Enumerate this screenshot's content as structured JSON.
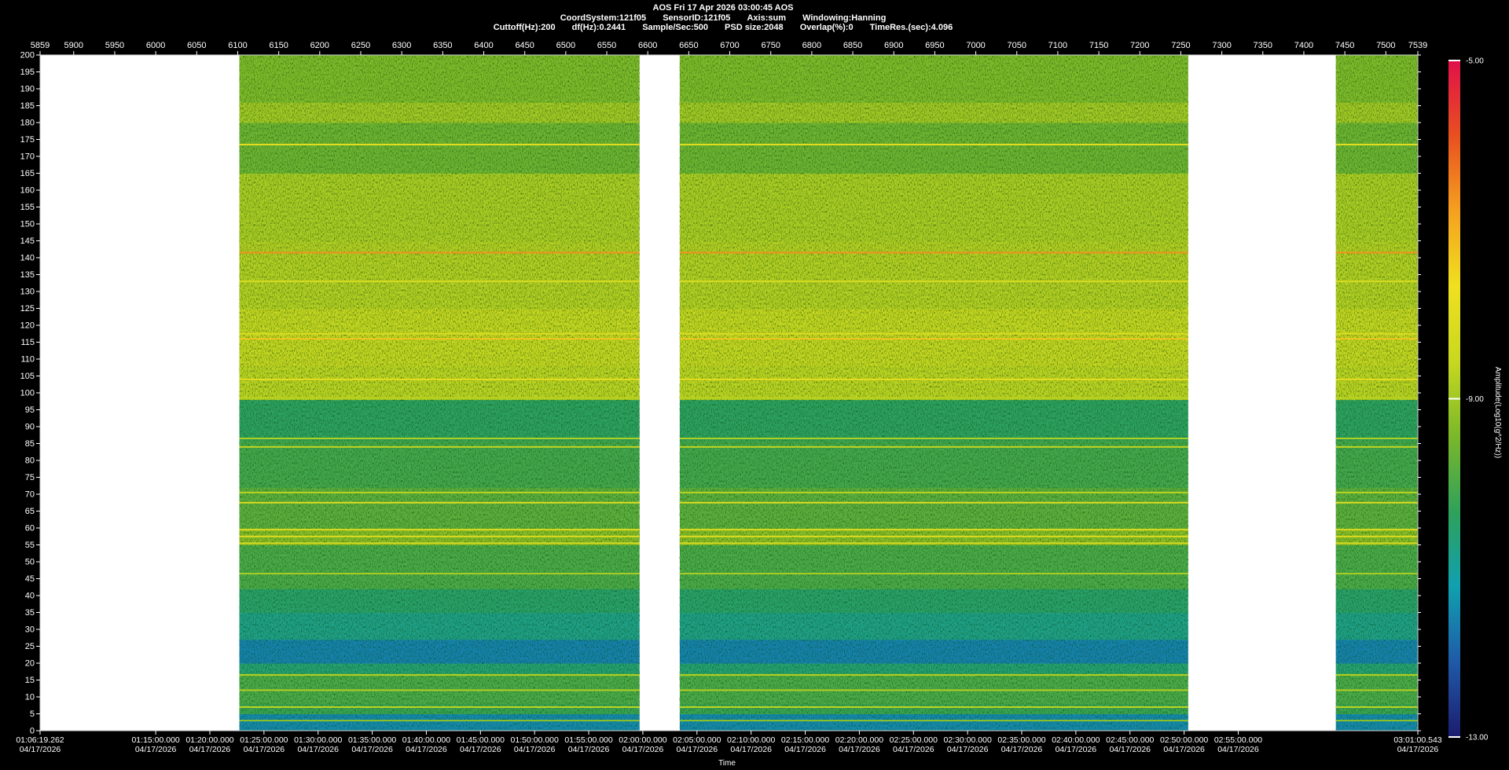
{
  "header": {
    "line1": "AOS  Fri 17 Apr 2026 03:00:45  AOS",
    "line2": [
      "CoordSystem:121f05",
      "SensorID:121f05",
      "Axis:sum",
      "Windowing:Hanning"
    ],
    "line3": [
      "Cuttoff(Hz):200",
      "df(Hz):0.2441",
      "Sample/Sec:500",
      "PSD size:2048",
      "Overlap(%):0",
      "TimeRes.(sec):4.096"
    ]
  },
  "chart_data": {
    "type": "heatmap",
    "title": "AOS  Fri 17 Apr 2026 03:00:45  AOS",
    "xlabel": "Time",
    "ylabel": "",
    "zlabel": "Amplitude(Log10(g^2/Hz))",
    "colormap": [
      "#1c1c6e",
      "#1f5aa8",
      "#10a0b0",
      "#2fa15a",
      "#7ab82a",
      "#c8d820",
      "#f0e020",
      "#f5a020",
      "#e85020",
      "#e0104a"
    ],
    "zlim": [
      -13.0,
      -5.0
    ],
    "colorbar_ticks": [
      "-5.00",
      "-9.00",
      "-13.00"
    ],
    "ylim": [
      0,
      200
    ],
    "y_ticks": [
      0,
      5,
      10,
      15,
      20,
      25,
      30,
      35,
      40,
      45,
      50,
      55,
      60,
      65,
      70,
      75,
      80,
      85,
      90,
      95,
      100,
      105,
      110,
      115,
      120,
      125,
      130,
      135,
      140,
      145,
      150,
      155,
      160,
      165,
      170,
      175,
      180,
      185,
      190,
      195,
      200
    ],
    "top_axis": {
      "range": [
        5859,
        7539
      ],
      "ticks": [
        5859,
        5900,
        5950,
        6000,
        6050,
        6100,
        6150,
        6200,
        6250,
        6300,
        6350,
        6400,
        6450,
        6500,
        6550,
        6600,
        6650,
        6700,
        6750,
        6800,
        6850,
        6900,
        6950,
        7000,
        7050,
        7100,
        7150,
        7200,
        7250,
        7300,
        7350,
        7400,
        7450,
        7500,
        7539
      ]
    },
    "bottom_axis": {
      "ticks": [
        {
          "pos": 5859,
          "time": "01:06:19.262",
          "date": "04/17/2026"
        },
        {
          "pos": 6000,
          "time": "01:15:00.000",
          "date": "04/17/2026"
        },
        {
          "pos": 6066,
          "time": "01:20:00.000",
          "date": "04/17/2026"
        },
        {
          "pos": 6132,
          "time": "01:25:00.000",
          "date": "04/17/2026"
        },
        {
          "pos": 6198,
          "time": "01:30:00.000",
          "date": "04/17/2026"
        },
        {
          "pos": 6264,
          "time": "01:35:00.000",
          "date": "04/17/2026"
        },
        {
          "pos": 6330,
          "time": "01:40:00.000",
          "date": "04/17/2026"
        },
        {
          "pos": 6396,
          "time": "01:45:00.000",
          "date": "04/17/2026"
        },
        {
          "pos": 6462,
          "time": "01:50:00.000",
          "date": "04/17/2026"
        },
        {
          "pos": 6528,
          "time": "01:55:00.000",
          "date": "04/17/2026"
        },
        {
          "pos": 6594,
          "time": "02:00:00.000",
          "date": "04/17/2026"
        },
        {
          "pos": 6660,
          "time": "02:05:00.000",
          "date": "04/17/2026"
        },
        {
          "pos": 6726,
          "time": "02:10:00.000",
          "date": "04/17/2026"
        },
        {
          "pos": 6792,
          "time": "02:15:00.000",
          "date": "04/17/2026"
        },
        {
          "pos": 6858,
          "time": "02:20:00.000",
          "date": "04/17/2026"
        },
        {
          "pos": 6924,
          "time": "02:25:00.000",
          "date": "04/17/2026"
        },
        {
          "pos": 6990,
          "time": "02:30:00.000",
          "date": "04/17/2026"
        },
        {
          "pos": 7056,
          "time": "02:35:00.000",
          "date": "04/17/2026"
        },
        {
          "pos": 7122,
          "time": "02:40:00.000",
          "date": "04/17/2026"
        },
        {
          "pos": 7188,
          "time": "02:45:00.000",
          "date": "04/17/2026"
        },
        {
          "pos": 7254,
          "time": "02:50:00.000",
          "date": "04/17/2026"
        },
        {
          "pos": 7320,
          "time": "02:55:00.000",
          "date": "04/17/2026"
        },
        {
          "pos": 7539,
          "time": "03:01:00.543",
          "date": "04/17/2026"
        }
      ]
    },
    "data_segments": [
      {
        "start": 6102,
        "end": 6590
      },
      {
        "start": 6639,
        "end": 7259
      },
      {
        "start": 7439,
        "end": 7539
      }
    ],
    "spectral_bands": [
      {
        "f0": 0,
        "f1": 5,
        "level": -11.5
      },
      {
        "f0": 5,
        "f1": 8,
        "level": -10.2
      },
      {
        "f0": 8,
        "f1": 17,
        "level": -10.0
      },
      {
        "f0": 17,
        "f1": 20,
        "level": -10.6
      },
      {
        "f0": 20,
        "f1": 27,
        "level": -11.6
      },
      {
        "f0": 27,
        "f1": 35,
        "level": -10.8
      },
      {
        "f0": 35,
        "f1": 42,
        "level": -10.5
      },
      {
        "f0": 42,
        "f1": 55,
        "level": -10.0
      },
      {
        "f0": 55,
        "f1": 60,
        "level": -9.3
      },
      {
        "f0": 60,
        "f1": 72,
        "level": -9.8
      },
      {
        "f0": 72,
        "f1": 86,
        "level": -10.1
      },
      {
        "f0": 86,
        "f1": 98,
        "level": -10.4
      },
      {
        "f0": 98,
        "f1": 108,
        "level": -8.7
      },
      {
        "f0": 108,
        "f1": 125,
        "level": -8.6
      },
      {
        "f0": 125,
        "f1": 145,
        "level": -8.8
      },
      {
        "f0": 145,
        "f1": 165,
        "level": -8.9
      },
      {
        "f0": 165,
        "f1": 180,
        "level": -9.6
      },
      {
        "f0": 180,
        "f1": 186,
        "level": -9.0
      },
      {
        "f0": 186,
        "f1": 200,
        "level": -9.4
      }
    ],
    "spectral_lines": [
      {
        "f": 3,
        "level": -9.2
      },
      {
        "f": 7,
        "level": -8.6
      },
      {
        "f": 12,
        "level": -8.8
      },
      {
        "f": 16.5,
        "level": -8.8
      },
      {
        "f": 46.5,
        "level": -8.9
      },
      {
        "f": 55.5,
        "level": -8.2
      },
      {
        "f": 57.5,
        "level": -8.0
      },
      {
        "f": 59.5,
        "level": -8.1
      },
      {
        "f": 67.5,
        "level": -8.0
      },
      {
        "f": 70.5,
        "level": -8.7
      },
      {
        "f": 84,
        "level": -8.6
      },
      {
        "f": 86.5,
        "level": -8.8
      },
      {
        "f": 98.5,
        "level": -8.7
      },
      {
        "f": 104,
        "level": -7.9
      },
      {
        "f": 116,
        "level": -7.3
      },
      {
        "f": 117.5,
        "level": -8.1
      },
      {
        "f": 133,
        "level": -8.2
      },
      {
        "f": 141.5,
        "level": -6.6
      },
      {
        "f": 173.5,
        "level": -7.9
      }
    ]
  }
}
